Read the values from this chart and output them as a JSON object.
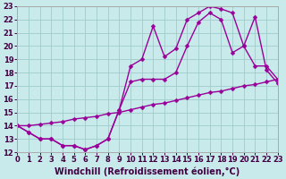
{
  "background_color": "#c8eaea",
  "grid_color": "#a0cccc",
  "line_color": "#990099",
  "marker": "D",
  "markersize": 2.5,
  "linewidth": 1.0,
  "xlim": [
    0,
    23
  ],
  "ylim": [
    12,
    23
  ],
  "xticks": [
    0,
    1,
    2,
    3,
    4,
    5,
    6,
    7,
    8,
    9,
    10,
    11,
    12,
    13,
    14,
    15,
    16,
    17,
    18,
    19,
    20,
    21,
    22,
    23
  ],
  "yticks": [
    12,
    13,
    14,
    15,
    16,
    17,
    18,
    19,
    20,
    21,
    22,
    23
  ],
  "xlabel": "Windchill (Refroidissement éolien,°C)",
  "xlabel_fontsize": 7.0,
  "tick_fontsize": 6.0,
  "line1_x": [
    0,
    1,
    2,
    3,
    4,
    5,
    6,
    7,
    8,
    9,
    10,
    11,
    12,
    13,
    14,
    15,
    16,
    17,
    18,
    19,
    20,
    21,
    22,
    23
  ],
  "line1_y": [
    14,
    13.5,
    13.0,
    13.0,
    12.5,
    12.5,
    12.2,
    12.5,
    13.0,
    15.2,
    18.5,
    19.0,
    21.5,
    19.2,
    19.8,
    22.0,
    22.5,
    23.0,
    22.8,
    22.5,
    20.0,
    18.5,
    18.5,
    17.5
  ],
  "line2_x": [
    0,
    1,
    2,
    3,
    4,
    5,
    6,
    7,
    8,
    9,
    10,
    11,
    12,
    13,
    14,
    15,
    16,
    17,
    18,
    19,
    20,
    21,
    22,
    23
  ],
  "line2_y": [
    14,
    13.5,
    13.0,
    13.0,
    12.5,
    12.5,
    12.2,
    12.5,
    13.0,
    15.2,
    17.3,
    17.5,
    17.5,
    17.5,
    18.0,
    20.0,
    21.8,
    22.5,
    22.0,
    19.5,
    20.0,
    22.2,
    18.2,
    17.2
  ],
  "line3_x": [
    0,
    1,
    2,
    3,
    4,
    5,
    6,
    7,
    8,
    9,
    10,
    11,
    12,
    13,
    14,
    15,
    16,
    17,
    18,
    19,
    20,
    21,
    22,
    23
  ],
  "line3_y": [
    14.0,
    14.0,
    14.1,
    14.2,
    14.3,
    14.5,
    14.6,
    14.7,
    14.9,
    15.0,
    15.2,
    15.4,
    15.6,
    15.7,
    15.9,
    16.1,
    16.3,
    16.5,
    16.6,
    16.8,
    17.0,
    17.1,
    17.3,
    17.5
  ]
}
